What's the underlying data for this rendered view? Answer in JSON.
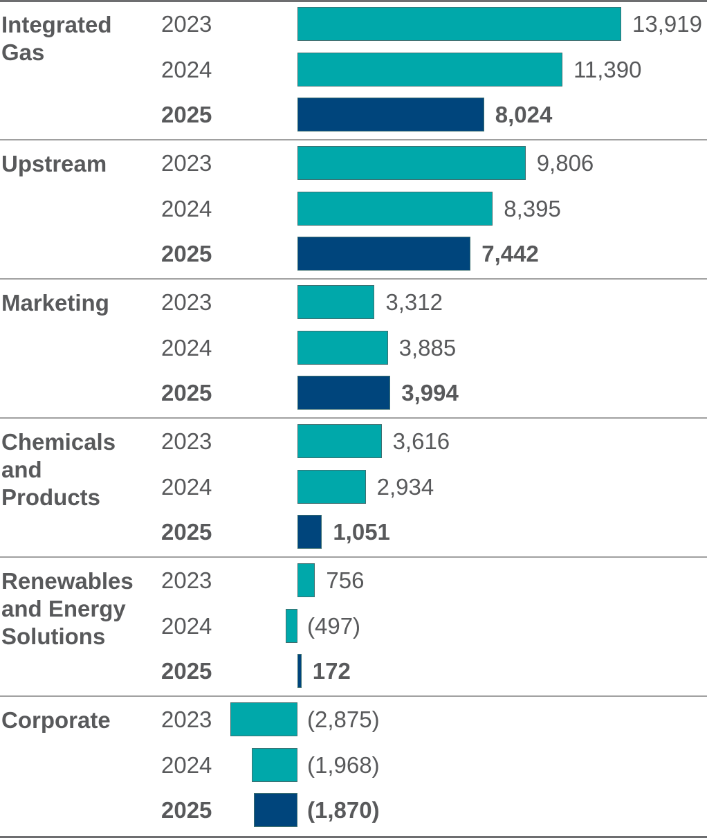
{
  "chart_data": {
    "type": "bar",
    "orientation": "horizontal",
    "groups": [
      {
        "category": "Integrated\nGas",
        "years": [
          "2023",
          "2024",
          "2025"
        ],
        "values": [
          13919,
          11390,
          8024
        ],
        "labels": [
          "13,919",
          "11,390",
          "8,024"
        ]
      },
      {
        "category": "Upstream",
        "years": [
          "2023",
          "2024",
          "2025"
        ],
        "values": [
          9806,
          8395,
          7442
        ],
        "labels": [
          "9,806",
          "8,395",
          "7,442"
        ]
      },
      {
        "category": "Marketing",
        "years": [
          "2023",
          "2024",
          "2025"
        ],
        "values": [
          3312,
          3885,
          3994
        ],
        "labels": [
          "3,312",
          "3,885",
          "3,994"
        ]
      },
      {
        "category": "Chemicals\nand\nProducts",
        "years": [
          "2023",
          "2024",
          "2025"
        ],
        "values": [
          3616,
          2934,
          1051
        ],
        "labels": [
          "3,616",
          "2,934",
          "1,051"
        ]
      },
      {
        "category": "Renewables\nand Energy\nSolutions",
        "years": [
          "2023",
          "2024",
          "2025"
        ],
        "values": [
          756,
          -497,
          172
        ],
        "labels": [
          "756",
          "(497)",
          "172"
        ]
      },
      {
        "category": "Corporate",
        "years": [
          "2023",
          "2024",
          "2025"
        ],
        "values": [
          -2875,
          -1968,
          -1870
        ],
        "labels": [
          "(2,875)",
          "(1,968)",
          "(1,870)"
        ]
      }
    ],
    "highlight_year": "2025",
    "colors": {
      "prior_years": "#00A8AA",
      "highlight": "#00457C",
      "text": "#58595B"
    }
  }
}
